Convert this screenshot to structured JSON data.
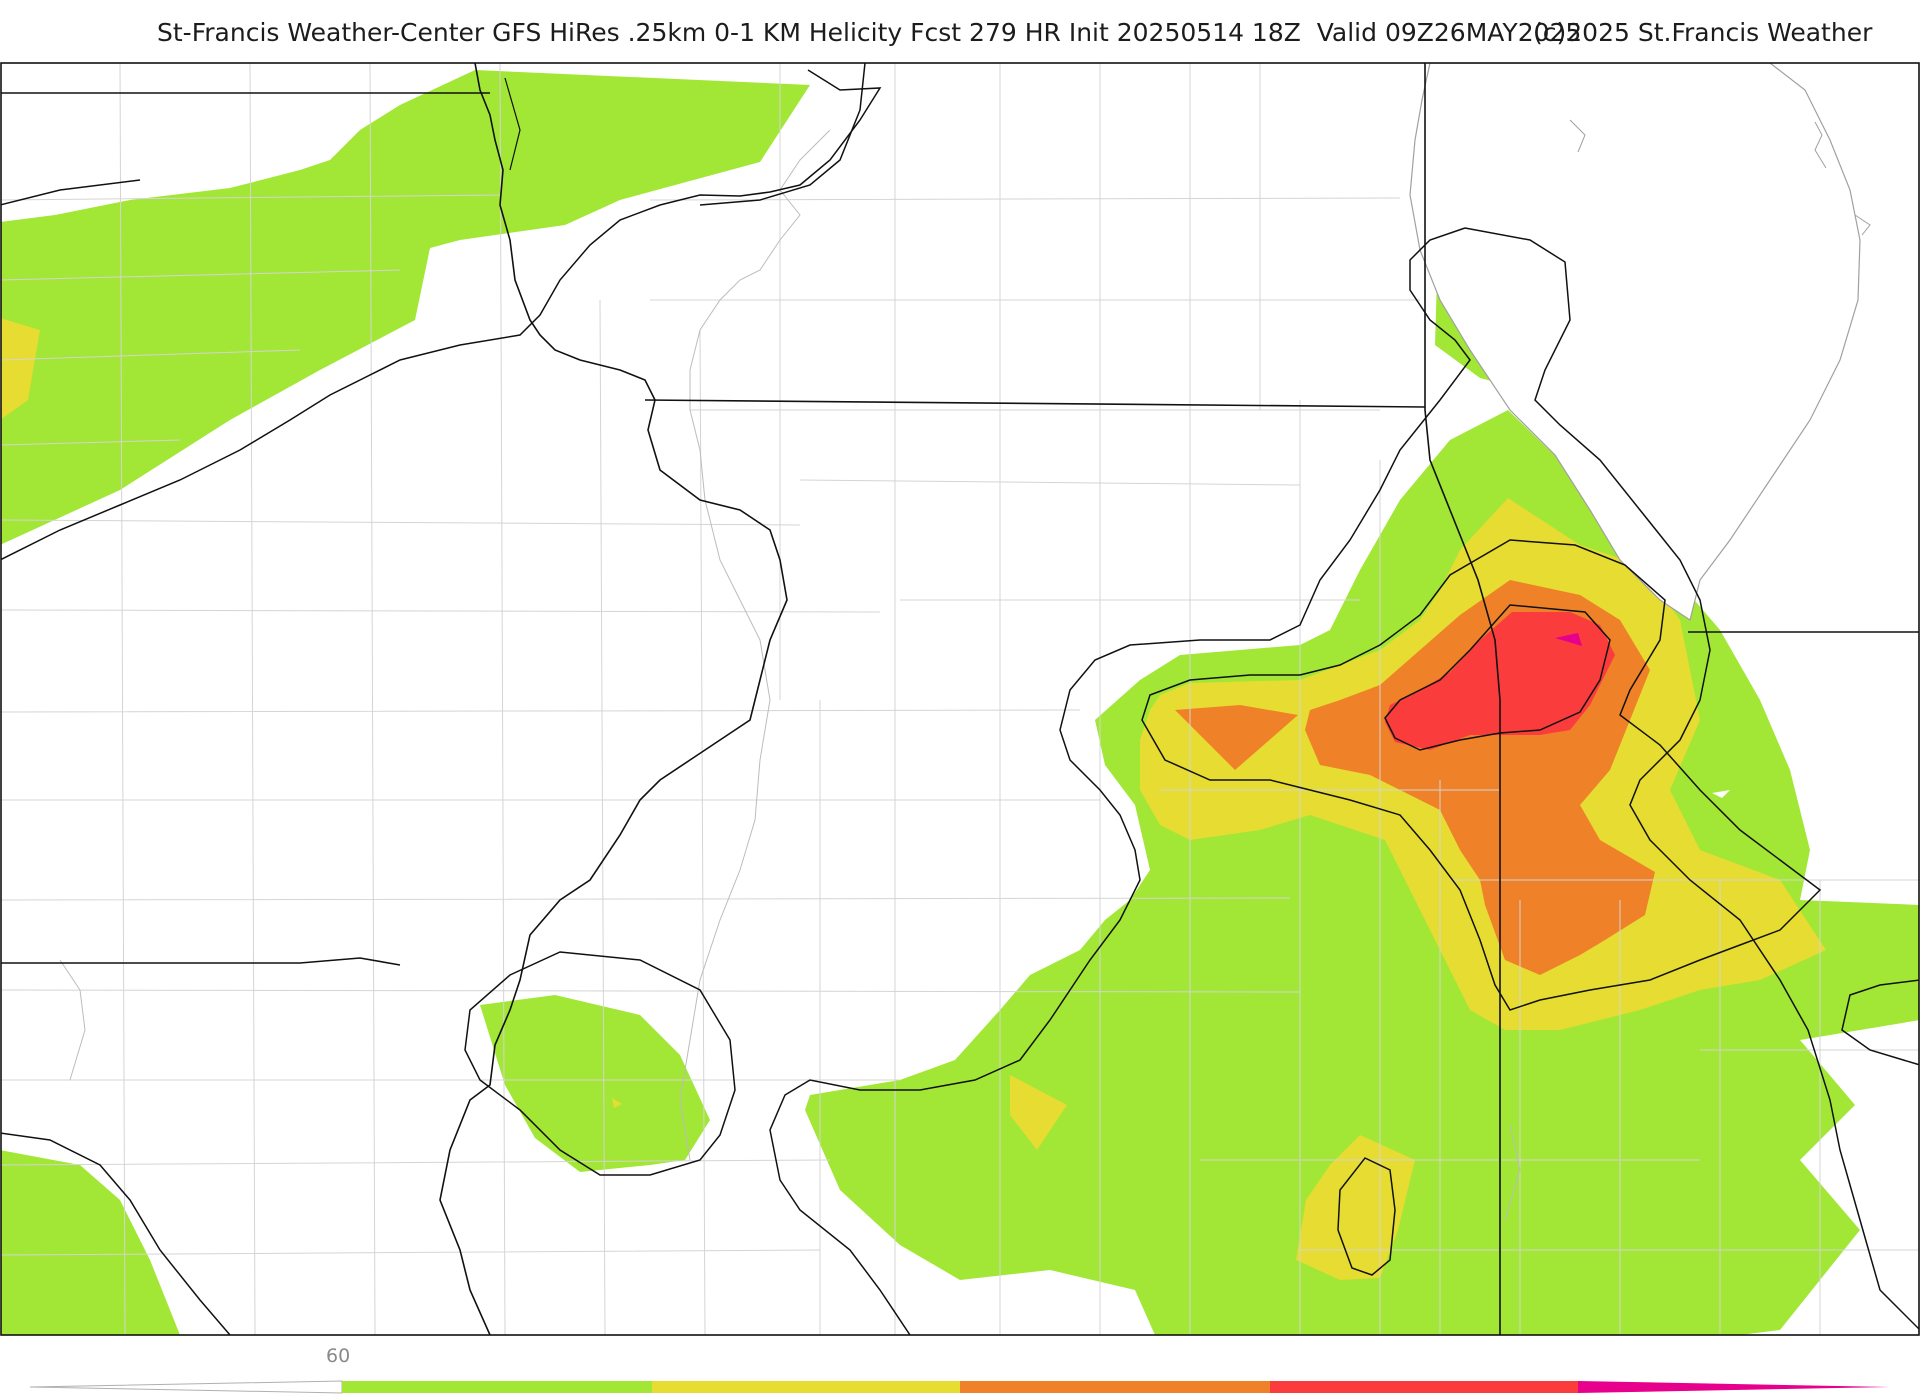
{
  "header": {
    "title": "St-Francis Weather-Center GFS HiRes .25km 0-1 KM Helicity Fcst 279 HR Init 20250514 18Z  Valid 09Z26MAY2025",
    "copyright": "(c)2025 St.Francis Weather"
  },
  "legend": {
    "first_tick": "60",
    "colors": [
      "#a2e636",
      "#e6dc32",
      "#ef8228",
      "#fa3c3c",
      "#e6008c"
    ]
  },
  "map": {
    "fill_colors": {
      "green": "#a2e636",
      "yellow": "#e6dc32",
      "orange": "#ef8228",
      "red": "#fa3c3c",
      "magenta": "#e6008c"
    },
    "boundary_color": "#d0d0d0",
    "state_line_color": "#111111",
    "contour_color": "#111111"
  }
}
